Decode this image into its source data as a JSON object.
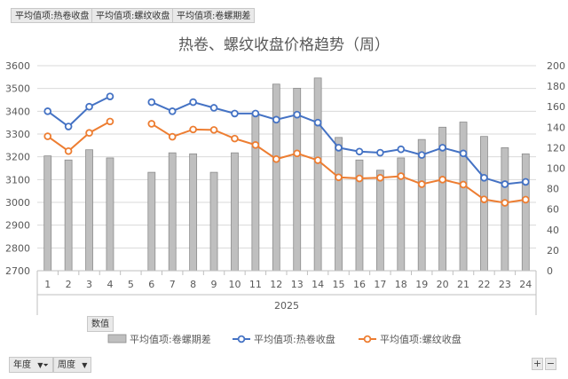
{
  "pivot_filters": [
    "平均值项:热卷收盘",
    "平均值项:螺纹收盘",
    "平均值项:卷螺期差"
  ],
  "values_field": "数值",
  "axis_fields": [
    {
      "label": "年度",
      "icon": "filter-dropdown-icon"
    },
    {
      "label": "周度",
      "icon": "dropdown-icon"
    }
  ],
  "zoom": {
    "plus": "+",
    "minus": "−"
  },
  "chart_data": {
    "type": "bar+line",
    "title": "热卷、螺纹收盘价格趋势（周）",
    "categories": [
      "1",
      "2",
      "3",
      "4",
      "5",
      "6",
      "7",
      "8",
      "9",
      "10",
      "11",
      "12",
      "13",
      "14",
      "15",
      "16",
      "17",
      "18",
      "19",
      "20",
      "21",
      "22",
      "23",
      "24"
    ],
    "group_label": "2025",
    "y_left": {
      "min": 2700,
      "max": 3600,
      "step": 100,
      "ticks": [
        "2700",
        "2800",
        "2900",
        "3000",
        "3100",
        "3200",
        "3300",
        "3400",
        "3500",
        "3600"
      ]
    },
    "y_right": {
      "min": 0,
      "max": 200,
      "step": 20,
      "ticks": [
        "0",
        "20",
        "40",
        "60",
        "80",
        "100",
        "120",
        "140",
        "160",
        "180",
        "200"
      ]
    },
    "grid": true,
    "legend_position": "bottom",
    "series": [
      {
        "name": "平均值项:卷螺期差",
        "kind": "bar",
        "axis": "right",
        "color": "#bfbfbf",
        "values": [
          112,
          108,
          118,
          110,
          null,
          96,
          115,
          114,
          96,
          115,
          152,
          182,
          178,
          188,
          130,
          108,
          98,
          110,
          128,
          140,
          145,
          131,
          120,
          114
        ]
      },
      {
        "name": "平均值项:热卷收盘",
        "kind": "line",
        "axis": "left",
        "color": "#4472c4",
        "values": [
          3400,
          3333,
          3420,
          3465,
          null,
          3440,
          3400,
          3440,
          3415,
          3390,
          3390,
          3363,
          3385,
          3350,
          3240,
          3223,
          3218,
          3233,
          3208,
          3240,
          3215,
          3108,
          3080,
          3090
        ]
      },
      {
        "name": "平均值项:螺纹收盘",
        "kind": "line",
        "axis": "left",
        "color": "#ed7d31",
        "values": [
          3290,
          3225,
          3305,
          3355,
          null,
          3345,
          3288,
          3320,
          3318,
          3280,
          3252,
          3190,
          3215,
          3185,
          3110,
          3105,
          3108,
          3115,
          3080,
          3100,
          3078,
          3013,
          2998,
          3012
        ]
      }
    ]
  }
}
